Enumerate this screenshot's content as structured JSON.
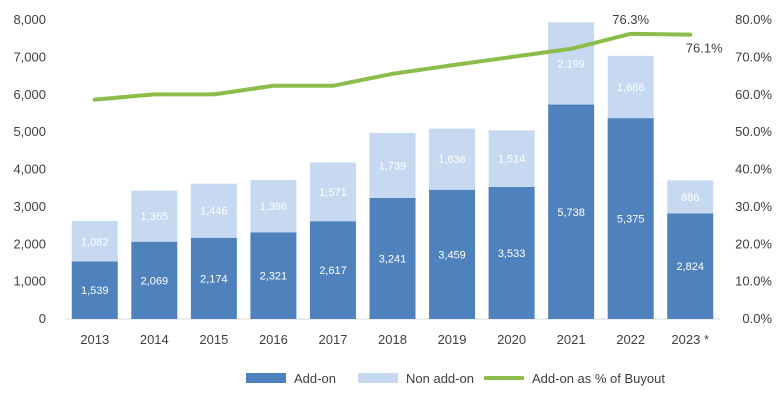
{
  "chart_data": {
    "type": "bar",
    "stacked": true,
    "categories": [
      "2013",
      "2014",
      "2015",
      "2016",
      "2017",
      "2018",
      "2019",
      "2020",
      "2021",
      "2022",
      "2023 *"
    ],
    "series": [
      {
        "name": "Add-on",
        "type": "bar",
        "axis": "left",
        "color": "#4f81bd",
        "values": [
          1539,
          2069,
          2174,
          2321,
          2617,
          3241,
          3459,
          3533,
          5738,
          5375,
          2824
        ],
        "labels": [
          "1,539",
          "2,069",
          "2,174",
          "2,321",
          "2,617",
          "3,241",
          "3,459",
          "3,533",
          "5,738",
          "5,375",
          "2,824"
        ]
      },
      {
        "name": "Non add-on",
        "type": "bar",
        "axis": "left",
        "color": "#c6d9f1",
        "values": [
          1082,
          1365,
          1446,
          1398,
          1571,
          1739,
          1636,
          1514,
          2199,
          1666,
          886
        ],
        "labels": [
          "1,082",
          "1,365",
          "1,446",
          "1,398",
          "1,571",
          "1,739",
          "1,636",
          "1,514",
          "2,199",
          "1,666",
          "886"
        ]
      },
      {
        "name": "Add-on as % of Buyout",
        "type": "line",
        "axis": "right",
        "color": "#8cbd4a",
        "values": [
          0.587,
          0.601,
          0.601,
          0.624,
          0.624,
          0.656,
          0.679,
          0.701,
          0.723,
          0.763,
          0.761
        ]
      }
    ],
    "line_labels": [
      {
        "index": 9,
        "text": "76.3%"
      },
      {
        "index": 10,
        "text": "76.1%"
      }
    ],
    "ylim": [
      0,
      8000
    ],
    "y_ticks": [
      "0",
      "1,000",
      "2,000",
      "3,000",
      "4,000",
      "5,000",
      "6,000",
      "7,000",
      "8,000"
    ],
    "y2lim": [
      0,
      0.8
    ],
    "y2_ticks": [
      "0.0%",
      "10.0%",
      "20.0%",
      "30.0%",
      "40.0%",
      "50.0%",
      "60.0%",
      "70.0%",
      "80.0%"
    ],
    "grid": false,
    "legend": "bottom"
  }
}
